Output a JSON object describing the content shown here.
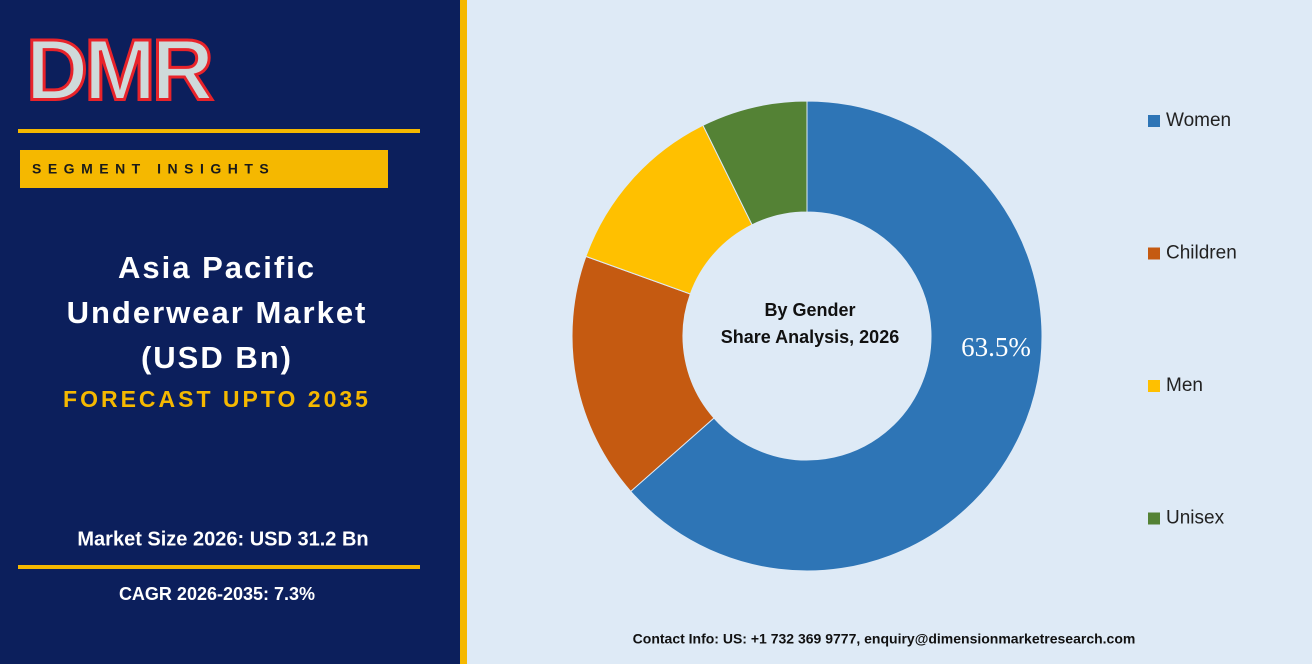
{
  "header": {
    "logo": "DMR",
    "badge": "SEGMENT INSIGHTS",
    "title_lines": [
      "Asia Pacific",
      "Underwear Market",
      "(USD Bn)"
    ],
    "subtitle": "FORECAST UPTO 2035",
    "market_size": "Market Size 2026: USD 31.2 Bn",
    "cagr": "CAGR 2026-2035: 7.3%"
  },
  "chart_data": {
    "type": "donut",
    "center_text": [
      "By Gender",
      "Share Analysis, 2026"
    ],
    "categories": [
      "Women",
      "Children",
      "Men",
      "Unisex"
    ],
    "values": [
      63.5,
      17.0,
      12.2,
      7.3
    ],
    "value_labels": [
      "63.5%",
      null,
      null,
      null
    ],
    "colors": [
      "#2e75b6",
      "#c55a11",
      "#ffc000",
      "#548235"
    ],
    "legend": "right"
  },
  "footer": {
    "contact": "Contact Info: US: +1 732 369 9777, enquiry@dimensionmarketresearch.com"
  }
}
